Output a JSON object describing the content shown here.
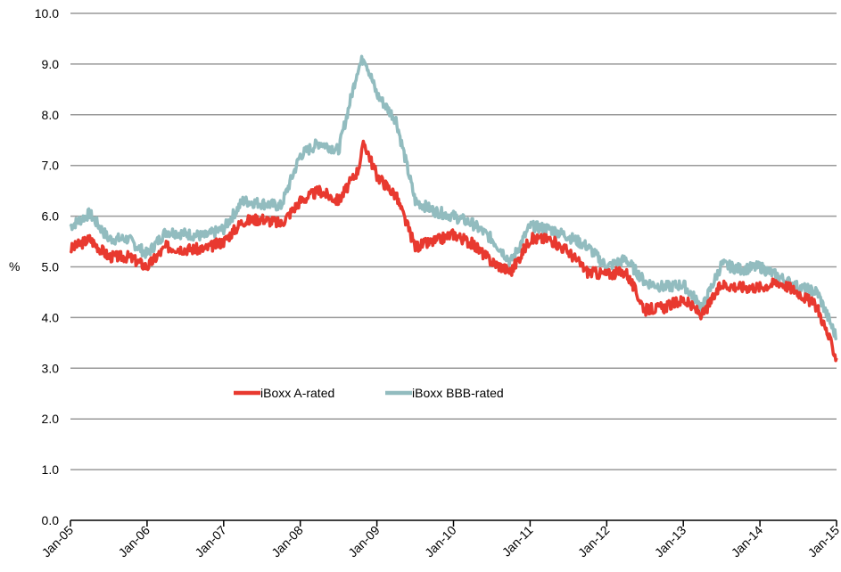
{
  "chart_data": {
    "type": "line",
    "ylabel": "%",
    "ylim": [
      0,
      10
    ],
    "yticks": [
      "0.0",
      "1.0",
      "2.0",
      "3.0",
      "4.0",
      "5.0",
      "6.0",
      "7.0",
      "8.0",
      "9.0",
      "10.0"
    ],
    "xlim": [
      "2005-01",
      "2015-01"
    ],
    "xticks": [
      "Jan-05",
      "Jan-06",
      "Jan-07",
      "Jan-08",
      "Jan-09",
      "Jan-10",
      "Jan-11",
      "Jan-12",
      "Jan-13",
      "Jan-14",
      "Jan-15"
    ],
    "grid": "horizontal",
    "legend_position": "center-left",
    "x": [
      "2005-01",
      "2005-04",
      "2005-07",
      "2005-10",
      "2006-01",
      "2006-04",
      "2006-07",
      "2006-10",
      "2007-01",
      "2007-04",
      "2007-07",
      "2007-10",
      "2008-01",
      "2008-04",
      "2008-07",
      "2008-10",
      "2008-11",
      "2009-01",
      "2009-04",
      "2009-07",
      "2009-10",
      "2010-01",
      "2010-04",
      "2010-07",
      "2010-10",
      "2011-01",
      "2011-04",
      "2011-07",
      "2011-10",
      "2012-01",
      "2012-04",
      "2012-07",
      "2012-10",
      "2013-01",
      "2013-04",
      "2013-07",
      "2013-10",
      "2014-01",
      "2014-04",
      "2014-07",
      "2014-10",
      "2015-01"
    ],
    "series": [
      {
        "name": "iBoxx A-rated",
        "color": "#e8392f",
        "values": [
          5.35,
          5.55,
          5.2,
          5.2,
          5.0,
          5.4,
          5.35,
          5.35,
          5.5,
          5.9,
          5.95,
          5.85,
          6.3,
          6.5,
          6.3,
          6.9,
          7.45,
          6.8,
          6.4,
          5.4,
          5.5,
          5.65,
          5.45,
          5.1,
          4.9,
          5.55,
          5.55,
          5.3,
          4.9,
          4.85,
          4.9,
          4.15,
          4.2,
          4.35,
          4.05,
          4.65,
          4.6,
          4.6,
          4.7,
          4.5,
          4.2,
          3.2
        ]
      },
      {
        "name": "iBoxx BBB-rated",
        "color": "#92bcbf",
        "values": [
          5.8,
          6.05,
          5.55,
          5.55,
          5.25,
          5.7,
          5.65,
          5.6,
          5.75,
          6.3,
          6.25,
          6.2,
          7.2,
          7.45,
          7.3,
          8.9,
          9.15,
          8.4,
          7.9,
          6.3,
          6.1,
          6.0,
          5.85,
          5.55,
          5.1,
          5.8,
          5.75,
          5.6,
          5.4,
          5.0,
          5.15,
          4.7,
          4.6,
          4.65,
          4.2,
          5.05,
          4.95,
          5.0,
          4.8,
          4.6,
          4.5,
          3.6
        ]
      }
    ]
  }
}
